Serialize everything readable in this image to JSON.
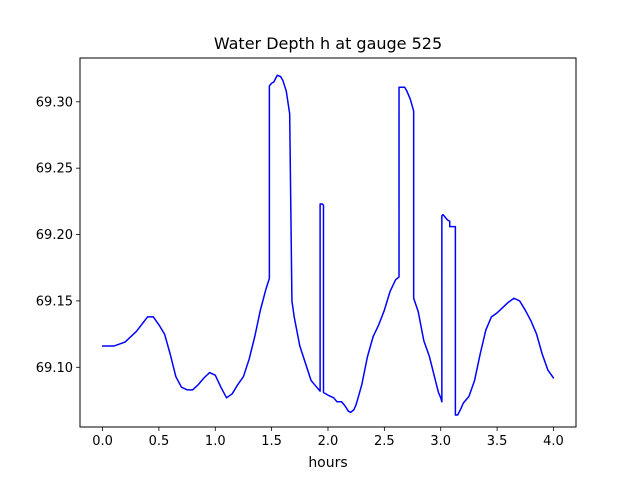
{
  "chart_data": {
    "type": "line",
    "title": "Water Depth h at gauge 525",
    "xlabel": "hours",
    "ylabel": "",
    "xlim": [
      -0.2,
      4.2
    ],
    "ylim": [
      69.055,
      69.333
    ],
    "grid": false,
    "x_ticks": [
      0.0,
      0.5,
      1.0,
      1.5,
      2.0,
      2.5,
      3.0,
      3.5,
      4.0
    ],
    "x_tick_labels": [
      "0.0",
      "0.5",
      "1.0",
      "1.5",
      "2.0",
      "2.5",
      "3.0",
      "3.5",
      "4.0"
    ],
    "y_ticks": [
      69.1,
      69.15,
      69.2,
      69.25,
      69.3
    ],
    "y_tick_labels": [
      "69.10",
      "69.15",
      "69.20",
      "69.25",
      "69.30"
    ],
    "series": [
      {
        "name": "",
        "color": "#0000ff",
        "points": [
          [
            0.0,
            69.116
          ],
          [
            0.1,
            69.116
          ],
          [
            0.2,
            69.119
          ],
          [
            0.3,
            69.127
          ],
          [
            0.4,
            69.138
          ],
          [
            0.45,
            69.138
          ],
          [
            0.5,
            69.132
          ],
          [
            0.55,
            69.125
          ],
          [
            0.6,
            69.11
          ],
          [
            0.65,
            69.093
          ],
          [
            0.7,
            69.085
          ],
          [
            0.75,
            69.083
          ],
          [
            0.8,
            69.083
          ],
          [
            0.85,
            69.087
          ],
          [
            0.9,
            69.092
          ],
          [
            0.95,
            69.096
          ],
          [
            1.0,
            69.094
          ],
          [
            1.05,
            69.085
          ],
          [
            1.1,
            69.077
          ],
          [
            1.15,
            69.08
          ],
          [
            1.2,
            69.087
          ],
          [
            1.25,
            69.093
          ],
          [
            1.3,
            69.106
          ],
          [
            1.35,
            69.123
          ],
          [
            1.4,
            69.143
          ],
          [
            1.45,
            69.159
          ],
          [
            1.48,
            69.167
          ],
          [
            1.48,
            69.312
          ],
          [
            1.5,
            69.314
          ],
          [
            1.52,
            69.315
          ],
          [
            1.55,
            69.32
          ],
          [
            1.58,
            69.319
          ],
          [
            1.6,
            69.316
          ],
          [
            1.63,
            69.308
          ],
          [
            1.66,
            69.291
          ],
          [
            1.68,
            69.15
          ],
          [
            1.7,
            69.138
          ],
          [
            1.75,
            69.116
          ],
          [
            1.8,
            69.103
          ],
          [
            1.85,
            69.09
          ],
          [
            1.9,
            69.085
          ],
          [
            1.93,
            69.082
          ],
          [
            1.93,
            69.223
          ],
          [
            1.95,
            69.223
          ],
          [
            1.96,
            69.222
          ],
          [
            1.96,
            69.081
          ],
          [
            2.0,
            69.079
          ],
          [
            2.05,
            69.077
          ],
          [
            2.08,
            69.074
          ],
          [
            2.1,
            69.074
          ],
          [
            2.12,
            69.074
          ],
          [
            2.15,
            69.071
          ],
          [
            2.18,
            69.067
          ],
          [
            2.2,
            69.066
          ],
          [
            2.23,
            69.068
          ],
          [
            2.25,
            69.072
          ],
          [
            2.3,
            69.087
          ],
          [
            2.35,
            69.108
          ],
          [
            2.4,
            69.123
          ],
          [
            2.45,
            69.132
          ],
          [
            2.5,
            69.143
          ],
          [
            2.55,
            69.157
          ],
          [
            2.6,
            69.166
          ],
          [
            2.63,
            69.168
          ],
          [
            2.63,
            69.311
          ],
          [
            2.65,
            69.311
          ],
          [
            2.68,
            69.311
          ],
          [
            2.7,
            69.308
          ],
          [
            2.73,
            69.302
          ],
          [
            2.76,
            69.293
          ],
          [
            2.76,
            69.152
          ],
          [
            2.8,
            69.142
          ],
          [
            2.85,
            69.12
          ],
          [
            2.9,
            69.108
          ],
          [
            2.95,
            69.091
          ],
          [
            2.98,
            69.081
          ],
          [
            3.0,
            69.077
          ],
          [
            3.01,
            69.074
          ],
          [
            3.01,
            69.214
          ],
          [
            3.02,
            69.215
          ],
          [
            3.04,
            69.213
          ],
          [
            3.06,
            69.211
          ],
          [
            3.08,
            69.21
          ],
          [
            3.08,
            69.206
          ],
          [
            3.1,
            69.206
          ],
          [
            3.13,
            69.206
          ],
          [
            3.13,
            69.064
          ],
          [
            3.15,
            69.064
          ],
          [
            3.18,
            69.069
          ],
          [
            3.2,
            69.073
          ],
          [
            3.25,
            69.078
          ],
          [
            3.3,
            69.09
          ],
          [
            3.35,
            69.11
          ],
          [
            3.4,
            69.128
          ],
          [
            3.45,
            69.138
          ],
          [
            3.5,
            69.141
          ],
          [
            3.55,
            69.145
          ],
          [
            3.6,
            69.149
          ],
          [
            3.65,
            69.152
          ],
          [
            3.7,
            69.15
          ],
          [
            3.75,
            69.143
          ],
          [
            3.8,
            69.135
          ],
          [
            3.85,
            69.125
          ],
          [
            3.9,
            69.11
          ],
          [
            3.95,
            69.098
          ],
          [
            4.0,
            69.092
          ]
        ]
      }
    ]
  }
}
